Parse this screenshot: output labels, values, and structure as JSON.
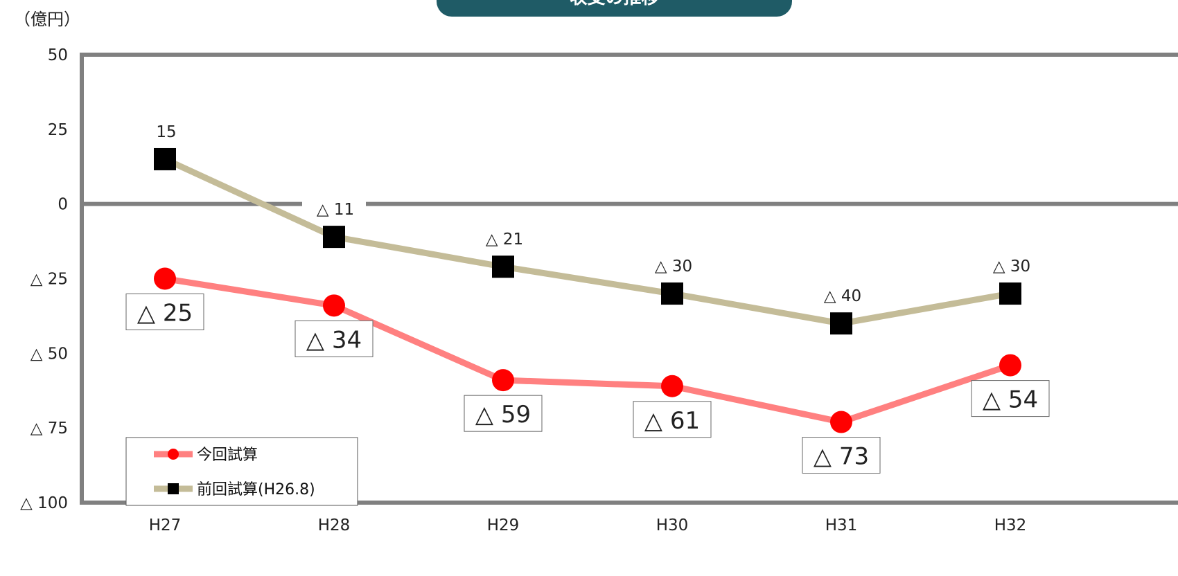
{
  "chart_data": {
    "type": "line",
    "title": "収支の推移",
    "unit_label": "（億円）",
    "categories": [
      "H27",
      "H28",
      "H29",
      "H30",
      "H31",
      "H32"
    ],
    "ylim": [
      -100,
      50
    ],
    "yticks": [
      50,
      25,
      0,
      -25,
      -50,
      -75,
      -100
    ],
    "ytick_labels": [
      "50",
      "25",
      "0",
      "△ 25",
      "△ 50",
      "△ 75",
      "△ 100"
    ],
    "series": [
      {
        "name": "今回試算",
        "values": [
          -25,
          -34,
          -59,
          -61,
          -73,
          -54
        ],
        "labels": [
          "△ 25",
          "△ 34",
          "△ 59",
          "△ 61",
          "△ 73",
          "△ 54"
        ],
        "line_color": "#ff8080",
        "marker_color": "#ff0000",
        "marker": "circle"
      },
      {
        "name": "前回試算(H26.8)",
        "values": [
          15,
          -11,
          -21,
          -30,
          -40,
          -30
        ],
        "labels": [
          "15",
          "△ 11",
          "△ 21",
          "△ 30",
          "△ 40",
          "△ 30"
        ],
        "line_color": "#c4bc98",
        "marker_color": "#000000",
        "marker": "square"
      }
    ],
    "legend_position": "bottom-left",
    "grid": false
  }
}
